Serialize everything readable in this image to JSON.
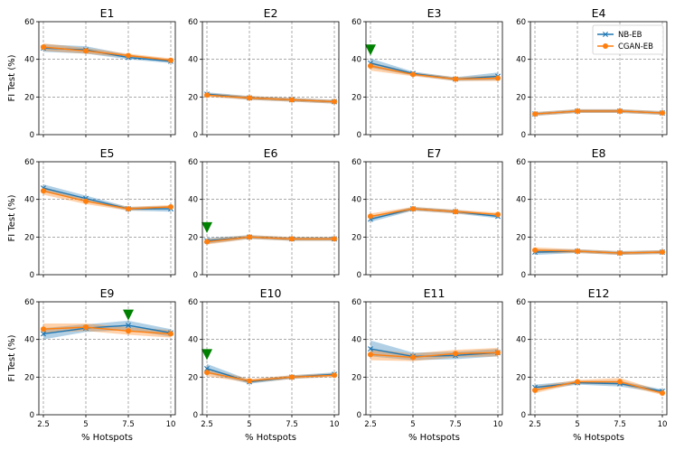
{
  "chart_data": {
    "type": "line",
    "x": [
      2.5,
      5,
      7.5,
      10
    ],
    "xlabel": "% Hotspots",
    "ylabel": "FI Test (%)",
    "ylim": [
      0,
      60
    ],
    "yticks": [
      0,
      20,
      40,
      60
    ],
    "xtick_labels": [
      "2.5",
      "5",
      "7.5",
      "10"
    ],
    "grid": true,
    "legend": {
      "location": "top-right of E4",
      "entries": [
        "NB-EB",
        "CGAN-EB"
      ]
    },
    "colors": {
      "NB-EB": "#1f77b4",
      "CGAN-EB": "#ff7f0e",
      "marker": "#008000"
    },
    "panels": [
      {
        "title": "E1",
        "series": [
          {
            "name": "NB-EB",
            "values": [
              46,
              45,
              41,
              39
            ],
            "band": [
              [
                44,
                48
              ],
              [
                43,
                47
              ],
              [
                40,
                42.5
              ],
              [
                38,
                40
              ]
            ]
          },
          {
            "name": "CGAN-EB",
            "values": [
              46.5,
              44.5,
              42,
              39.5
            ],
            "band": [
              [
                44.5,
                48.5
              ],
              [
                43,
                46
              ],
              [
                41,
                43
              ],
              [
                38.5,
                40.5
              ]
            ]
          }
        ]
      },
      {
        "title": "E2",
        "series": [
          {
            "name": "NB-EB",
            "values": [
              21.5,
              19.5,
              18.5,
              17.5
            ],
            "band": [
              [
                20.5,
                22.5
              ],
              [
                18.5,
                20.5
              ],
              [
                17.5,
                19.5
              ],
              [
                16.5,
                18.5
              ]
            ]
          },
          {
            "name": "CGAN-EB",
            "values": [
              21,
              19.5,
              18.5,
              17.5
            ],
            "band": [
              [
                20,
                22
              ],
              [
                18.5,
                20.5
              ],
              [
                17.5,
                19.5
              ],
              [
                16.5,
                18.5
              ]
            ]
          }
        ]
      },
      {
        "title": "E3",
        "series": [
          {
            "name": "NB-EB",
            "values": [
              38,
              32.5,
              29.5,
              31
            ],
            "band": [
              [
                35.5,
                40.5
              ],
              [
                31.5,
                33.5
              ],
              [
                28.5,
                30.5
              ],
              [
                29,
                33
              ]
            ]
          },
          {
            "name": "CGAN-EB",
            "values": [
              36.5,
              32,
              29.5,
              30
            ],
            "band": [
              [
                34,
                38.5
              ],
              [
                31,
                33
              ],
              [
                28.5,
                30.5
              ],
              [
                28.5,
                31.5
              ]
            ]
          }
        ]
      },
      {
        "title": "E4",
        "series": [
          {
            "name": "NB-EB",
            "values": [
              11,
              12.5,
              12.5,
              11.5
            ],
            "band": [
              [
                10,
                12
              ],
              [
                11.5,
                13.5
              ],
              [
                11.5,
                13.5
              ],
              [
                10.5,
                12.5
              ]
            ]
          },
          {
            "name": "CGAN-EB",
            "values": [
              11,
              12.5,
              12.5,
              11.5
            ],
            "band": [
              [
                10,
                12
              ],
              [
                11.5,
                13.5
              ],
              [
                11.5,
                13.5
              ],
              [
                10.5,
                12.5
              ]
            ]
          }
        ]
      },
      {
        "title": "E5",
        "series": [
          {
            "name": "NB-EB",
            "values": [
              46,
              40.5,
              35,
              35
            ],
            "band": [
              [
                44,
                48
              ],
              [
                39,
                42
              ],
              [
                34,
                36
              ],
              [
                33.5,
                36.5
              ]
            ]
          },
          {
            "name": "CGAN-EB",
            "values": [
              44.5,
              39,
              35,
              36
            ],
            "band": [
              [
                42.5,
                46.5
              ],
              [
                37.5,
                40.5
              ],
              [
                34,
                36
              ],
              [
                35,
                37
              ]
            ]
          }
        ]
      },
      {
        "title": "E6",
        "series": [
          {
            "name": "NB-EB",
            "values": [
              18,
              20,
              19,
              19
            ],
            "band": [
              [
                16.5,
                19.5
              ],
              [
                19,
                21
              ],
              [
                18,
                20
              ],
              [
                18,
                20
              ]
            ]
          },
          {
            "name": "CGAN-EB",
            "values": [
              17.5,
              20,
              19,
              19
            ],
            "band": [
              [
                16,
                19
              ],
              [
                19,
                21
              ],
              [
                18,
                20
              ],
              [
                18,
                20
              ]
            ]
          }
        ]
      },
      {
        "title": "E7",
        "series": [
          {
            "name": "NB-EB",
            "values": [
              29.5,
              35,
              33.5,
              31
            ],
            "band": [
              [
                28,
                31
              ],
              [
                34,
                36
              ],
              [
                32.5,
                34.5
              ],
              [
                30,
                32
              ]
            ]
          },
          {
            "name": "CGAN-EB",
            "values": [
              31,
              35,
              33.5,
              32
            ],
            "band": [
              [
                29.5,
                32.5
              ],
              [
                34,
                36
              ],
              [
                32.5,
                34.5
              ],
              [
                31,
                33
              ]
            ]
          }
        ]
      },
      {
        "title": "E8",
        "series": [
          {
            "name": "NB-EB",
            "values": [
              12,
              12.5,
              11.5,
              12
            ],
            "band": [
              [
                10.5,
                13.5
              ],
              [
                11.5,
                13.5
              ],
              [
                10.5,
                12.5
              ],
              [
                11,
                13
              ]
            ]
          },
          {
            "name": "CGAN-EB",
            "values": [
              13,
              12.5,
              11.5,
              12
            ],
            "band": [
              [
                11.5,
                14.5
              ],
              [
                11.5,
                13.5
              ],
              [
                10.5,
                12.5
              ],
              [
                11,
                13
              ]
            ]
          }
        ]
      },
      {
        "title": "E9",
        "series": [
          {
            "name": "NB-EB",
            "values": [
              43,
              46,
              47.5,
              43.5
            ],
            "band": [
              [
                40,
                46
              ],
              [
                44,
                48
              ],
              [
                45,
                50
              ],
              [
                41.5,
                45.5
              ]
            ]
          },
          {
            "name": "CGAN-EB",
            "values": [
              45.5,
              46.5,
              44.5,
              43
            ],
            "band": [
              [
                43.5,
                48.5
              ],
              [
                44.5,
                48.5
              ],
              [
                42.5,
                46.5
              ],
              [
                41,
                45
              ]
            ]
          }
        ]
      },
      {
        "title": "E10",
        "series": [
          {
            "name": "NB-EB",
            "values": [
              24.5,
              17.5,
              20,
              21.5
            ],
            "band": [
              [
                22,
                27
              ],
              [
                16.5,
                18.5
              ],
              [
                19,
                21
              ],
              [
                20.5,
                22.5
              ]
            ]
          },
          {
            "name": "CGAN-EB",
            "values": [
              22.5,
              18,
              20,
              21
            ],
            "band": [
              [
                20.5,
                24.5
              ],
              [
                17,
                19
              ],
              [
                19,
                21
              ],
              [
                20,
                22
              ]
            ]
          }
        ]
      },
      {
        "title": "E11",
        "series": [
          {
            "name": "NB-EB",
            "values": [
              35,
              31,
              31.5,
              33
            ],
            "band": [
              [
                31,
                39.5
              ],
              [
                29,
                33
              ],
              [
                29.5,
                33.5
              ],
              [
                31,
                35
              ]
            ]
          },
          {
            "name": "CGAN-EB",
            "values": [
              32,
              30.5,
              32.5,
              33
            ],
            "band": [
              [
                29,
                35
              ],
              [
                28.5,
                32.5
              ],
              [
                30.5,
                34.5
              ],
              [
                31,
                35.5
              ]
            ]
          }
        ]
      },
      {
        "title": "E12",
        "series": [
          {
            "name": "NB-EB",
            "values": [
              14.5,
              17,
              16.5,
              12.5
            ],
            "band": [
              [
                13,
                16
              ],
              [
                16,
                18
              ],
              [
                15,
                18
              ],
              [
                11.5,
                13.5
              ]
            ]
          },
          {
            "name": "CGAN-EB",
            "values": [
              13,
              17.5,
              17.5,
              11.5
            ],
            "band": [
              [
                11.5,
                15
              ],
              [
                16.5,
                18.5
              ],
              [
                16,
                19.5
              ],
              [
                10.5,
                12.5
              ]
            ]
          }
        ]
      }
    ],
    "annotations": [
      {
        "panel": "E3",
        "type": "triangle-down",
        "x": 2.5,
        "y": 45
      },
      {
        "panel": "E6",
        "type": "triangle-down",
        "x": 2.5,
        "y": 25
      },
      {
        "panel": "E9",
        "type": "triangle-down",
        "x": 7.5,
        "y": 53
      },
      {
        "panel": "E10",
        "type": "triangle-down",
        "x": 2.5,
        "y": 32
      }
    ]
  }
}
